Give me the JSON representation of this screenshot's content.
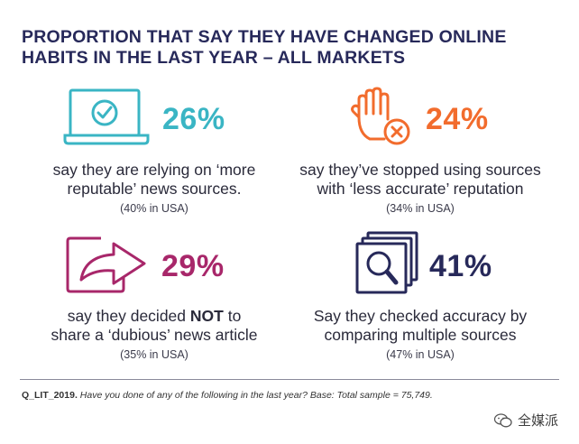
{
  "title": {
    "line1": "PROPORTION THAT SAY THEY HAVE CHANGED ONLINE",
    "line2": "HABITS IN THE LAST YEAR – ALL MARKETS"
  },
  "colors": {
    "teal": "#3ab5c4",
    "orange": "#f26c2d",
    "magenta": "#a8276a",
    "navy": "#27295a"
  },
  "stats": [
    {
      "icon": "laptop-check-icon",
      "percent": "26%",
      "line1": "say they are relying on ‘more",
      "line2": "reputable’ news sources.",
      "usa": "(40% in USA)"
    },
    {
      "icon": "hand-stop-icon",
      "percent": "24%",
      "line1": "say they’ve stopped using sources",
      "line2": "with ‘less accurate’ reputation",
      "usa": "(34% in USA)"
    },
    {
      "icon": "share-arrow-icon",
      "percent": "29%",
      "line1_pre": "say they decided ",
      "line1_bold": "NOT",
      "line1_post": " to",
      "line2": "share a ‘dubious’ news article",
      "usa": "(35% in USA)"
    },
    {
      "icon": "magnify-documents-icon",
      "percent": "41%",
      "line1": "Say they checked accuracy by",
      "line2": "comparing multiple sources",
      "usa": "(47% in USA)"
    }
  ],
  "footnote": {
    "code": "Q_LIT_2019.",
    "text": " Have you done of any of the following in the last year? Base: Total sample = 75,749."
  },
  "watermark": {
    "text": "全媒派",
    "icon": "wechat-icon"
  }
}
